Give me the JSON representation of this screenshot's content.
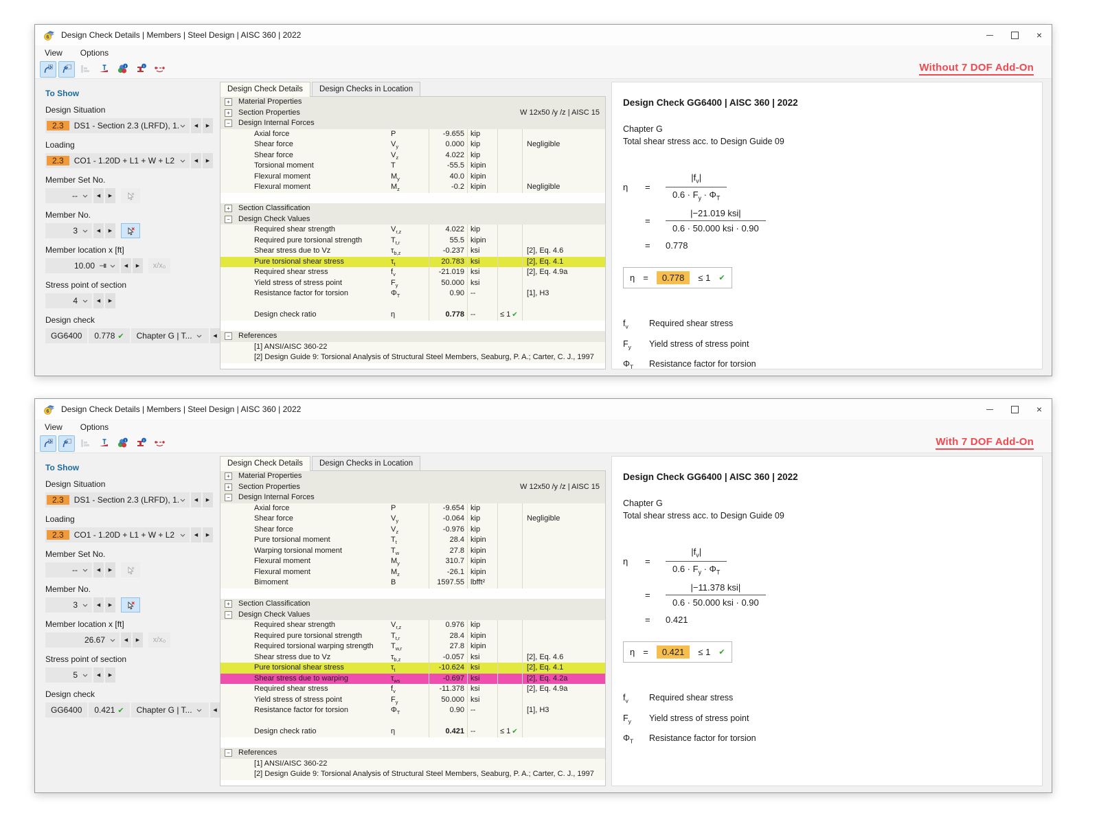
{
  "chrome_icons": [
    "app-icon",
    "minimize-icon",
    "maximize-icon",
    "close-icon"
  ],
  "toolbar_icons": [
    "previous-check-icon",
    "next-check-icon",
    "result-levels-icon",
    "stress-point-diagram-icon",
    "color-info-icon",
    "section-info-icon",
    "member-stress-points-icon"
  ],
  "colors": {
    "accent_orange": "#f09a3c",
    "highlight_yellow": "#e3e83e",
    "highlight_pink": "#ee4fae",
    "annotation_red": "#f0494f",
    "check_green": "#2da32d",
    "result_orange": "#f6bd4f"
  },
  "windows": [
    {
      "title": "Design Check Details | Members | Steel Design | AISC 360 | 2022",
      "menu": [
        "View",
        "Options"
      ],
      "annotation": "Without 7 DOF Add-On",
      "sidebar": {
        "header": "To Show",
        "design_situation": {
          "label": "Design Situation",
          "badge": "2.3",
          "value": "DS1 - Section 2.3 (LRFD), 1. ..."
        },
        "loading": {
          "label": "Loading",
          "badge": "2.3",
          "value": "CO1 - 1.20D + L1 + W + L2"
        },
        "member_set": {
          "label": "Member Set No.",
          "value": "--"
        },
        "member": {
          "label": "Member No.",
          "value": "3"
        },
        "location": {
          "label": "Member location x [ft]",
          "value": "10.00",
          "aux": "x/x₀"
        },
        "stress_point": {
          "label": "Stress point of section",
          "value": "4"
        },
        "design_check": {
          "label": "Design check",
          "code": "GG6400",
          "ratio": "0.778",
          "chapter": "Chapter G | T..."
        }
      },
      "tabs": [
        {
          "label": "Design Check Details",
          "cls": "active"
        },
        {
          "label": "Design Checks in Location",
          "cls": ""
        }
      ],
      "rows": [
        {
          "cls": "sec",
          "expand": "+",
          "name": "Material Properties"
        },
        {
          "cls": "sec",
          "expand": "+",
          "name": "Section Properties",
          "note": "W 12x50 /y /z | AISC 15"
        },
        {
          "cls": "sec",
          "expand": "−",
          "name": "Design Internal Forces"
        },
        {
          "cls": "item",
          "name": "Axial force",
          "sym": "P",
          "val": "-9.655",
          "unit": "kip"
        },
        {
          "cls": "item",
          "name": "Shear force",
          "sym": "V<sub>y</sub>",
          "val": "0.000",
          "unit": "kip",
          "ref": "Negligible"
        },
        {
          "cls": "item",
          "name": "Shear force",
          "sym": "V<sub>z</sub>",
          "val": "4.022",
          "unit": "kip"
        },
        {
          "cls": "item",
          "name": "Torsional moment",
          "sym": "T",
          "val": "-55.5",
          "unit": "kipin"
        },
        {
          "cls": "item",
          "name": "Flexural moment",
          "sym": "M<sub>y</sub>",
          "val": "40.0",
          "unit": "kipin"
        },
        {
          "cls": "item",
          "name": "Flexural moment",
          "sym": "M<sub>z</sub>",
          "val": "-0.2",
          "unit": "kipin",
          "ref": "Negligible"
        },
        {
          "cls": "white"
        },
        {
          "cls": "sec",
          "expand": "+",
          "name": "Section Classification"
        },
        {
          "cls": "sec",
          "expand": "−",
          "name": "Design Check Values"
        },
        {
          "cls": "item",
          "name": "Required shear strength",
          "sym": "V<sub>r,z</sub>",
          "val": "4.022",
          "unit": "kip"
        },
        {
          "cls": "item",
          "name": "Required pure torsional strength",
          "sym": "T<sub>t,r</sub>",
          "val": "55.5",
          "unit": "kipin"
        },
        {
          "cls": "item",
          "name": "Shear stress due to Vz",
          "sym": "τ<sub>b,z</sub>",
          "val": "-0.237",
          "unit": "ksi",
          "ref": "[2], Eq. 4.6"
        },
        {
          "cls": "item hl-y",
          "name": "Pure torsional shear stress",
          "sym": "τ<sub>t</sub>",
          "val": "20.783",
          "unit": "ksi",
          "ref": "[2], Eq. 4.1"
        },
        {
          "cls": "item",
          "name": "Required shear stress",
          "sym": "f<sub>v</sub>",
          "val": "-21.019",
          "unit": "ksi",
          "ref": "[2], Eq. 4.9a"
        },
        {
          "cls": "item",
          "name": "Yield stress of stress point",
          "sym": "F<sub>y</sub>",
          "val": "50.000",
          "unit": "ksi"
        },
        {
          "cls": "item",
          "name": "Resistance factor for torsion",
          "sym": "Φ<sub>T</sub>",
          "val": "0.90",
          "unit": "--",
          "ref": "[1], H3"
        },
        {
          "cls": "blank"
        },
        {
          "cls": "item bold",
          "name": "Design check ratio",
          "sym": "η",
          "val": "0.778",
          "unit": "--",
          "chk": "≤ 1",
          "pass": true
        },
        {
          "cls": "white"
        },
        {
          "cls": "sec",
          "expand": "−",
          "name": "References"
        },
        {
          "cls": "refitem",
          "name": "[1]  ANSI/AISC 360-22"
        },
        {
          "cls": "refitem",
          "name": "[2]  Design Guide 9: Torsional Analysis of Structural Steel Members, Seaburg, P. A.; Carter, C. J., 1997"
        }
      ],
      "panel": {
        "title": "Design Check GG6400 | AISC 360 | 2022",
        "chapter": "Chapter G",
        "subtitle": "Total shear stress acc. to Design Guide 09",
        "eta": "η",
        "eq": "=",
        "f1_num": "|f<sub>v</sub>|",
        "f1_den": "0.6 · F<sub>y</sub> · Φ<sub>T</sub>",
        "f2_num": "|−21.019 ksi|",
        "f2_den": "0.6 · 50.000 ksi · 0.90",
        "result": "0.778",
        "box": {
          "value": "0.778",
          "cond": "≤ 1"
        },
        "legend": [
          {
            "sym": "f<sub>v</sub>",
            "text": "Required shear stress"
          },
          {
            "sym": "F<sub>y</sub>",
            "text": "Yield stress of stress point"
          },
          {
            "sym": "Φ<sub>T</sub>",
            "text": "Resistance factor for torsion"
          }
        ]
      }
    },
    {
      "title": "Design Check Details | Members | Steel Design | AISC 360 | 2022",
      "menu": [
        "View",
        "Options"
      ],
      "annotation": "With 7 DOF Add-On",
      "sidebar": {
        "header": "To Show",
        "design_situation": {
          "label": "Design Situation",
          "badge": "2.3",
          "value": "DS1 - Section 2.3 (LRFD), 1. ..."
        },
        "loading": {
          "label": "Loading",
          "badge": "2.3",
          "value": "CO1 - 1.20D + L1 + W + L2"
        },
        "member_set": {
          "label": "Member Set No.",
          "value": "--"
        },
        "member": {
          "label": "Member No.",
          "value": "3"
        },
        "location": {
          "label": "Member location x [ft]",
          "value": "26.67",
          "aux": "x/x₀"
        },
        "stress_point": {
          "label": "Stress point of section",
          "value": "5"
        },
        "design_check": {
          "label": "Design check",
          "code": "GG6400",
          "ratio": "0.421",
          "chapter": "Chapter G | T..."
        }
      },
      "tabs": [
        {
          "label": "Design Check Details",
          "cls": "active"
        },
        {
          "label": "Design Checks in Location",
          "cls": ""
        }
      ],
      "rows": [
        {
          "cls": "sec",
          "expand": "+",
          "name": "Material Properties"
        },
        {
          "cls": "sec",
          "expand": "+",
          "name": "Section Properties",
          "note": "W 12x50 /y /z | AISC 15"
        },
        {
          "cls": "sec",
          "expand": "−",
          "name": "Design Internal Forces"
        },
        {
          "cls": "item",
          "name": "Axial force",
          "sym": "P",
          "val": "-9.654",
          "unit": "kip"
        },
        {
          "cls": "item",
          "name": "Shear force",
          "sym": "V<sub>y</sub>",
          "val": "-0.064",
          "unit": "kip",
          "ref": "Negligible"
        },
        {
          "cls": "item",
          "name": "Shear force",
          "sym": "V<sub>z</sub>",
          "val": "-0.976",
          "unit": "kip"
        },
        {
          "cls": "item",
          "name": "Pure torsional moment",
          "sym": "T<sub>t</sub>",
          "val": "28.4",
          "unit": "kipin"
        },
        {
          "cls": "item",
          "name": "Warping torsional moment",
          "sym": "T<sub>w</sub>",
          "val": "27.8",
          "unit": "kipin"
        },
        {
          "cls": "item",
          "name": "Flexural moment",
          "sym": "M<sub>y</sub>",
          "val": "310.7",
          "unit": "kipin"
        },
        {
          "cls": "item",
          "name": "Flexural moment",
          "sym": "M<sub>z</sub>",
          "val": "-26.1",
          "unit": "kipin"
        },
        {
          "cls": "item",
          "name": "Bimoment",
          "sym": "B",
          "val": "1597.55",
          "unit": "lbfft²"
        },
        {
          "cls": "white"
        },
        {
          "cls": "sec",
          "expand": "+",
          "name": "Section Classification"
        },
        {
          "cls": "sec",
          "expand": "−",
          "name": "Design Check Values"
        },
        {
          "cls": "item",
          "name": "Required shear strength",
          "sym": "V<sub>r,z</sub>",
          "val": "0.976",
          "unit": "kip"
        },
        {
          "cls": "item",
          "name": "Required pure torsional strength",
          "sym": "T<sub>t,r</sub>",
          "val": "28.4",
          "unit": "kipin"
        },
        {
          "cls": "item",
          "name": "Required torsional warping strength",
          "sym": "T<sub>w,r</sub>",
          "val": "27.8",
          "unit": "kipin"
        },
        {
          "cls": "item",
          "name": "Shear stress due to Vz",
          "sym": "τ<sub>b,z</sub>",
          "val": "-0.057",
          "unit": "ksi",
          "ref": "[2], Eq. 4.6"
        },
        {
          "cls": "item hl-y",
          "name": "Pure torsional shear stress",
          "sym": "τ<sub>t</sub>",
          "val": "-10.624",
          "unit": "ksi",
          "ref": "[2], Eq. 4.1"
        },
        {
          "cls": "item hl-p",
          "name": "Shear stress due to warping",
          "sym": "τ<sub>ws</sub>",
          "val": "-0.697",
          "unit": "ksi",
          "ref": "[2], Eq. 4.2a"
        },
        {
          "cls": "item",
          "name": "Required shear stress",
          "sym": "f<sub>v</sub>",
          "val": "-11.378",
          "unit": "ksi",
          "ref": "[2], Eq. 4.9a"
        },
        {
          "cls": "item",
          "name": "Yield stress of stress point",
          "sym": "F<sub>y</sub>",
          "val": "50.000",
          "unit": "ksi"
        },
        {
          "cls": "item",
          "name": "Resistance factor for torsion",
          "sym": "Φ<sub>T</sub>",
          "val": "0.90",
          "unit": "--",
          "ref": "[1], H3"
        },
        {
          "cls": "blank"
        },
        {
          "cls": "item bold",
          "name": "Design check ratio",
          "sym": "η",
          "val": "0.421",
          "unit": "--",
          "chk": "≤ 1",
          "pass": true
        },
        {
          "cls": "white"
        },
        {
          "cls": "sec",
          "expand": "−",
          "name": "References"
        },
        {
          "cls": "refitem",
          "name": "[1]  ANSI/AISC 360-22"
        },
        {
          "cls": "refitem",
          "name": "[2]  Design Guide 9: Torsional Analysis of Structural Steel Members, Seaburg, P. A.; Carter, C. J., 1997"
        }
      ],
      "panel": {
        "title": "Design Check GG6400 | AISC 360 | 2022",
        "chapter": "Chapter G",
        "subtitle": "Total shear stress acc. to Design Guide 09",
        "eta": "η",
        "eq": "=",
        "f1_num": "|f<sub>v</sub>|",
        "f1_den": "0.6 · F<sub>y</sub> · Φ<sub>T</sub>",
        "f2_num": "|−11.378 ksi|",
        "f2_den": "0.6 · 50.000 ksi · 0.90",
        "result": "0.421",
        "box": {
          "value": "0.421",
          "cond": "≤ 1"
        },
        "legend": [
          {
            "sym": "f<sub>v</sub>",
            "text": "Required shear stress"
          },
          {
            "sym": "F<sub>y</sub>",
            "text": "Yield stress of stress point"
          },
          {
            "sym": "Φ<sub>T</sub>",
            "text": "Resistance factor for torsion"
          }
        ]
      }
    }
  ]
}
